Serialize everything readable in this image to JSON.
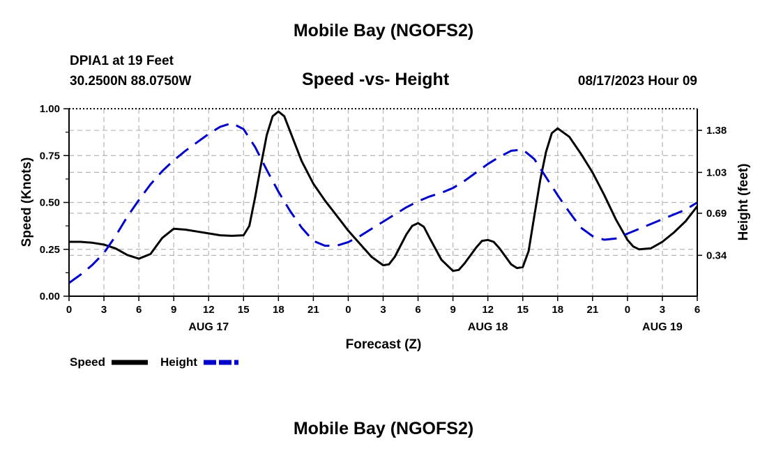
{
  "header": {
    "title": "Mobile Bay (NGOFS2)",
    "station": "DPIA1 at 19 Feet",
    "coords": "30.2500N  88.0750W",
    "subtitle": "Speed -vs- Height",
    "datetime": "08/17/2023 Hour 09"
  },
  "footer": {
    "title": "Mobile Bay (NGOFS2)"
  },
  "legend": {
    "items": [
      {
        "label": "Speed",
        "color": "#000000",
        "style": "solid"
      },
      {
        "label": "Height",
        "color": "#0000cc",
        "style": "dashed"
      }
    ]
  },
  "chart_data": {
    "type": "line",
    "title": "Speed -vs- Height",
    "xlabel": "Forecast (Z)",
    "ylabel": "Speed (Knots)",
    "y2label": "Height (feet)",
    "x_range_hours": [
      0,
      54
    ],
    "ylim": [
      0,
      1.0
    ],
    "y2lim": [
      0,
      1.56
    ],
    "x_ticks": [
      {
        "h": 0,
        "label": "0"
      },
      {
        "h": 3,
        "label": "3"
      },
      {
        "h": 6,
        "label": "6"
      },
      {
        "h": 9,
        "label": "9"
      },
      {
        "h": 12,
        "label": "12"
      },
      {
        "h": 15,
        "label": "15"
      },
      {
        "h": 18,
        "label": "18"
      },
      {
        "h": 21,
        "label": "21"
      },
      {
        "h": 24,
        "label": "0"
      },
      {
        "h": 27,
        "label": "3"
      },
      {
        "h": 30,
        "label": "6"
      },
      {
        "h": 33,
        "label": "9"
      },
      {
        "h": 36,
        "label": "12"
      },
      {
        "h": 39,
        "label": "15"
      },
      {
        "h": 42,
        "label": "18"
      },
      {
        "h": 45,
        "label": "21"
      },
      {
        "h": 48,
        "label": "0"
      },
      {
        "h": 51,
        "label": "3"
      },
      {
        "h": 54,
        "label": "6"
      }
    ],
    "date_labels": [
      {
        "h": 12,
        "label": "AUG 17"
      },
      {
        "h": 36,
        "label": "AUG 18"
      },
      {
        "h": 51,
        "label": "AUG 19"
      }
    ],
    "y_ticks": [
      {
        "v": 0.0,
        "label": "0.00"
      },
      {
        "v": 0.25,
        "label": "0.25"
      },
      {
        "v": 0.5,
        "label": "0.50"
      },
      {
        "v": 0.75,
        "label": "0.75"
      },
      {
        "v": 1.0,
        "label": "1.00"
      }
    ],
    "y2_ticks": [
      {
        "v": 0.34,
        "label": "0.34"
      },
      {
        "v": 0.69,
        "label": "0.69"
      },
      {
        "v": 1.03,
        "label": "1.03"
      },
      {
        "v": 1.38,
        "label": "1.38"
      }
    ],
    "series": [
      {
        "name": "Speed",
        "axis": "left",
        "color": "#000000",
        "dash": "",
        "points": [
          [
            0,
            0.29
          ],
          [
            1,
            0.29
          ],
          [
            2,
            0.285
          ],
          [
            3,
            0.275
          ],
          [
            4,
            0.255
          ],
          [
            5,
            0.22
          ],
          [
            6,
            0.2
          ],
          [
            7,
            0.225
          ],
          [
            8,
            0.31
          ],
          [
            9,
            0.36
          ],
          [
            10,
            0.355
          ],
          [
            11,
            0.345
          ],
          [
            12,
            0.335
          ],
          [
            13,
            0.325
          ],
          [
            14,
            0.322
          ],
          [
            15,
            0.325
          ],
          [
            15.5,
            0.375
          ],
          [
            16,
            0.53
          ],
          [
            16.5,
            0.7
          ],
          [
            17,
            0.86
          ],
          [
            17.5,
            0.96
          ],
          [
            18,
            0.985
          ],
          [
            18.5,
            0.96
          ],
          [
            19,
            0.88
          ],
          [
            20,
            0.72
          ],
          [
            21,
            0.6
          ],
          [
            22,
            0.51
          ],
          [
            23,
            0.43
          ],
          [
            24,
            0.35
          ],
          [
            25,
            0.28
          ],
          [
            26,
            0.21
          ],
          [
            27,
            0.165
          ],
          [
            27.5,
            0.17
          ],
          [
            28,
            0.21
          ],
          [
            29,
            0.33
          ],
          [
            29.5,
            0.375
          ],
          [
            30,
            0.39
          ],
          [
            30.5,
            0.37
          ],
          [
            31,
            0.31
          ],
          [
            32,
            0.195
          ],
          [
            33,
            0.135
          ],
          [
            33.5,
            0.14
          ],
          [
            34,
            0.175
          ],
          [
            35,
            0.26
          ],
          [
            35.5,
            0.295
          ],
          [
            36,
            0.3
          ],
          [
            36.5,
            0.29
          ],
          [
            37,
            0.255
          ],
          [
            38,
            0.17
          ],
          [
            38.5,
            0.15
          ],
          [
            39,
            0.155
          ],
          [
            39.5,
            0.24
          ],
          [
            40,
            0.43
          ],
          [
            40.5,
            0.62
          ],
          [
            41,
            0.77
          ],
          [
            41.5,
            0.87
          ],
          [
            42,
            0.895
          ],
          [
            43,
            0.85
          ],
          [
            44,
            0.76
          ],
          [
            45,
            0.66
          ],
          [
            46,
            0.54
          ],
          [
            47,
            0.41
          ],
          [
            48,
            0.3
          ],
          [
            48.5,
            0.265
          ],
          [
            49,
            0.25
          ],
          [
            50,
            0.255
          ],
          [
            51,
            0.29
          ],
          [
            52,
            0.34
          ],
          [
            53,
            0.4
          ],
          [
            54,
            0.48
          ]
        ]
      },
      {
        "name": "Height",
        "axis": "right",
        "color": "#0000cc",
        "dash": "22,12",
        "points": [
          [
            0,
            0.11
          ],
          [
            1,
            0.18
          ],
          [
            2,
            0.26
          ],
          [
            3,
            0.36
          ],
          [
            4,
            0.5
          ],
          [
            5,
            0.66
          ],
          [
            6,
            0.8
          ],
          [
            7,
            0.93
          ],
          [
            8,
            1.04
          ],
          [
            9,
            1.13
          ],
          [
            10,
            1.21
          ],
          [
            11,
            1.28
          ],
          [
            12,
            1.35
          ],
          [
            13,
            1.41
          ],
          [
            14,
            1.44
          ],
          [
            15,
            1.39
          ],
          [
            16,
            1.24
          ],
          [
            17,
            1.05
          ],
          [
            18,
            0.87
          ],
          [
            19,
            0.71
          ],
          [
            20,
            0.57
          ],
          [
            21,
            0.46
          ],
          [
            22,
            0.42
          ],
          [
            23,
            0.42
          ],
          [
            24,
            0.45
          ],
          [
            25,
            0.5
          ],
          [
            26,
            0.56
          ],
          [
            27,
            0.62
          ],
          [
            28,
            0.68
          ],
          [
            29,
            0.74
          ],
          [
            30,
            0.79
          ],
          [
            31,
            0.83
          ],
          [
            32,
            0.86
          ],
          [
            33,
            0.9
          ],
          [
            34,
            0.96
          ],
          [
            35,
            1.03
          ],
          [
            36,
            1.1
          ],
          [
            37,
            1.16
          ],
          [
            38,
            1.21
          ],
          [
            39,
            1.22
          ],
          [
            40,
            1.14
          ],
          [
            41,
            0.99
          ],
          [
            42,
            0.84
          ],
          [
            43,
            0.7
          ],
          [
            44,
            0.57
          ],
          [
            45,
            0.5
          ],
          [
            46,
            0.47
          ],
          [
            47,
            0.48
          ],
          [
            48,
            0.52
          ],
          [
            49,
            0.56
          ],
          [
            50,
            0.6
          ],
          [
            51,
            0.64
          ],
          [
            52,
            0.68
          ],
          [
            53,
            0.72
          ],
          [
            54,
            0.78
          ]
        ]
      }
    ]
  }
}
